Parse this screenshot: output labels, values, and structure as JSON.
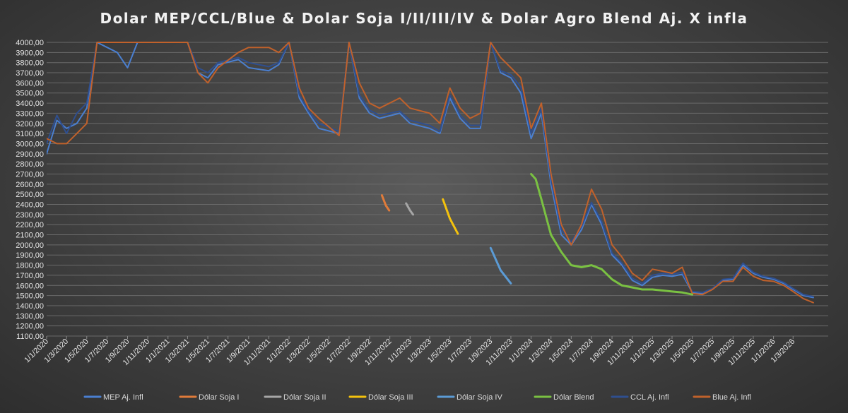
{
  "chart_data": {
    "type": "line",
    "title": "Dolar MEP/CCL/Blue & Dolar Soja I/II/III/IV & Dolar Agro Blend Aj. X infla",
    "xlabel": "",
    "ylabel": "",
    "ylim": [
      1100,
      4000
    ],
    "yticks": [
      "1100,00",
      "1200,00",
      "1300,00",
      "1400,00",
      "1500,00",
      "1600,00",
      "1700,00",
      "1800,00",
      "1900,00",
      "2000,00",
      "2100,00",
      "2200,00",
      "2300,00",
      "2400,00",
      "2500,00",
      "2600,00",
      "2700,00",
      "2800,00",
      "2900,00",
      "3000,00",
      "3100,00",
      "3200,00",
      "3300,00",
      "3400,00",
      "3500,00",
      "3600,00",
      "3700,00",
      "3800,00",
      "3900,00",
      "4000,00"
    ],
    "xticks": [
      "1/1/2020",
      "1/3/2020",
      "1/5/2020",
      "1/7/2020",
      "1/9/2020",
      "1/11/2020",
      "1/1/2021",
      "1/3/2021",
      "1/5/2021",
      "1/7/2021",
      "1/9/2021",
      "1/11/2021",
      "1/1/2022",
      "1/3/2022",
      "1/5/2022",
      "1/7/2022",
      "1/9/2022",
      "1/11/2022",
      "1/1/2023",
      "1/3/2023",
      "1/5/2023",
      "1/7/2023",
      "1/9/2023",
      "1/11/2023",
      "1/1/2024",
      "1/3/2024",
      "1/5/2024",
      "1/7/2024",
      "1/9/2024",
      "1/11/2024",
      "1/1/2025",
      "1/3/2025",
      "1/5/2025",
      "1/7/2025",
      "1/9/2025",
      "1/11/2025",
      "1/1/2026",
      "1/3/2026"
    ],
    "grid": true,
    "legend_position": "bottom",
    "series": [
      {
        "name": "MEP Aj. Infl",
        "color": "#4a7fd0",
        "width": 2,
        "points": [
          [
            "1/1/2020",
            2900
          ],
          [
            "1/2/2020",
            3230
          ],
          [
            "1/3/2020",
            3150
          ],
          [
            "1/4/2020",
            3200
          ],
          [
            "1/5/2020",
            3350
          ],
          [
            "1/6/2020",
            4000
          ],
          [
            "1/8/2020",
            3900
          ],
          [
            "1/9/2020",
            3750
          ],
          [
            "1/10/2020",
            4000
          ],
          [
            "1/3/2021",
            4000
          ],
          [
            "1/4/2021",
            3700
          ],
          [
            "1/5/2021",
            3650
          ],
          [
            "1/6/2021",
            3780
          ],
          [
            "1/8/2021",
            3830
          ],
          [
            "1/9/2021",
            3750
          ],
          [
            "1/11/2021",
            3720
          ],
          [
            "1/12/2021",
            3780
          ],
          [
            "1/1/2022",
            4000
          ],
          [
            "1/2/2022",
            3450
          ],
          [
            "1/3/2022",
            3300
          ],
          [
            "1/4/2022",
            3150
          ],
          [
            "1/6/2022",
            3100
          ],
          [
            "1/7/2022",
            4000
          ],
          [
            "1/8/2022",
            3450
          ],
          [
            "1/9/2022",
            3300
          ],
          [
            "1/10/2022",
            3250
          ],
          [
            "1/12/2022",
            3300
          ],
          [
            "1/1/2023",
            3200
          ],
          [
            "1/3/2023",
            3150
          ],
          [
            "1/4/2023",
            3100
          ],
          [
            "1/5/2023",
            3450
          ],
          [
            "1/6/2023",
            3250
          ],
          [
            "1/7/2023",
            3150
          ],
          [
            "1/8/2023",
            3150
          ],
          [
            "1/9/2023",
            4000
          ],
          [
            "1/10/2023",
            3700
          ],
          [
            "1/11/2023",
            3650
          ],
          [
            "1/12/2023",
            3500
          ],
          [
            "1/1/2024",
            3050
          ],
          [
            "1/2/2024",
            3300
          ],
          [
            "1/3/2024",
            2600
          ],
          [
            "1/4/2024",
            2100
          ],
          [
            "1/5/2024",
            2000
          ],
          [
            "1/6/2024",
            2150
          ],
          [
            "1/7/2024",
            2400
          ],
          [
            "1/8/2024",
            2200
          ],
          [
            "1/9/2024",
            1900
          ],
          [
            "1/10/2024",
            1800
          ],
          [
            "1/11/2024",
            1650
          ],
          [
            "1/12/2024",
            1600
          ],
          [
            "1/1/2025",
            1680
          ],
          [
            "1/2/2025",
            1700
          ],
          [
            "1/3/2025",
            1690
          ],
          [
            "1/4/2025",
            1710
          ],
          [
            "1/5/2025",
            1530
          ],
          [
            "1/6/2025",
            1520
          ],
          [
            "1/7/2025",
            1560
          ],
          [
            "1/8/2025",
            1650
          ],
          [
            "1/9/2025",
            1660
          ],
          [
            "1/10/2025",
            1800
          ],
          [
            "1/11/2025",
            1720
          ],
          [
            "1/12/2025",
            1680
          ],
          [
            "1/1/2026",
            1660
          ],
          [
            "1/2/2026",
            1620
          ],
          [
            "1/3/2026",
            1560
          ],
          [
            "1/4/2026",
            1500
          ],
          [
            "1/5/2026",
            1480
          ]
        ]
      },
      {
        "name": "Dólar Soja I",
        "color": "#e07b3a",
        "width": 3,
        "points": [
          [
            "8/10/2022",
            2490
          ],
          [
            "20/10/2022",
            2390
          ],
          [
            "30/10/2022",
            2340
          ]
        ]
      },
      {
        "name": "Dólar Soja II",
        "color": "#a6a6a6",
        "width": 3,
        "points": [
          [
            "20/12/2022",
            2410
          ],
          [
            "1/1/2023",
            2340
          ],
          [
            "10/1/2023",
            2300
          ]
        ]
      },
      {
        "name": "Dólar Soja III",
        "color": "#f4c20d",
        "width": 3,
        "points": [
          [
            "10/4/2023",
            2450
          ],
          [
            "1/5/2023",
            2260
          ],
          [
            "25/5/2023",
            2110
          ]
        ]
      },
      {
        "name": "Dólar Soja IV",
        "color": "#5b9bd5",
        "width": 3,
        "points": [
          [
            "1/9/2023",
            1970
          ],
          [
            "1/10/2023",
            1750
          ],
          [
            "1/11/2023",
            1620
          ]
        ]
      },
      {
        "name": "Dólar Blend",
        "color": "#7ac142",
        "width": 3,
        "points": [
          [
            "1/1/2024",
            2700
          ],
          [
            "15/1/2024",
            2650
          ],
          [
            "1/2/2024",
            2450
          ],
          [
            "1/3/2024",
            2100
          ],
          [
            "1/4/2024",
            1930
          ],
          [
            "1/5/2024",
            1800
          ],
          [
            "1/6/2024",
            1780
          ],
          [
            "1/7/2024",
            1800
          ],
          [
            "1/8/2024",
            1760
          ],
          [
            "1/9/2024",
            1660
          ],
          [
            "1/10/2024",
            1600
          ],
          [
            "1/11/2024",
            1580
          ],
          [
            "1/12/2024",
            1560
          ],
          [
            "1/1/2025",
            1560
          ],
          [
            "1/3/2025",
            1540
          ],
          [
            "1/4/2025",
            1530
          ],
          [
            "1/5/2025",
            1510
          ]
        ]
      },
      {
        "name": "CCL Aj. Infl",
        "color": "#2f4f8f",
        "width": 2,
        "points": [
          [
            "1/1/2020",
            3000
          ],
          [
            "1/2/2020",
            3280
          ],
          [
            "1/3/2020",
            3100
          ],
          [
            "1/4/2020",
            3300
          ],
          [
            "1/5/2020",
            3400
          ],
          [
            "1/6/2020",
            4000
          ],
          [
            "1/10/2020",
            4000
          ],
          [
            "1/3/2021",
            4000
          ],
          [
            "1/4/2021",
            3750
          ],
          [
            "1/5/2021",
            3700
          ],
          [
            "1/6/2021",
            3800
          ],
          [
            "1/8/2021",
            3850
          ],
          [
            "1/9/2021",
            3800
          ],
          [
            "1/11/2021",
            3760
          ],
          [
            "1/12/2021",
            3800
          ],
          [
            "1/1/2022",
            4000
          ],
          [
            "1/2/2022",
            3480
          ],
          [
            "1/3/2022",
            3320
          ],
          [
            "1/4/2022",
            3200
          ],
          [
            "1/6/2022",
            3120
          ],
          [
            "1/7/2022",
            4000
          ],
          [
            "1/8/2022",
            3480
          ],
          [
            "1/9/2022",
            3330
          ],
          [
            "1/10/2022",
            3280
          ],
          [
            "1/12/2022",
            3320
          ],
          [
            "1/1/2023",
            3230
          ],
          [
            "1/3/2023",
            3180
          ],
          [
            "1/4/2023",
            3120
          ],
          [
            "1/5/2023",
            3480
          ],
          [
            "1/6/2023",
            3280
          ],
          [
            "1/7/2023",
            3180
          ],
          [
            "1/8/2023",
            3180
          ],
          [
            "1/9/2023",
            4000
          ],
          [
            "1/10/2023",
            3720
          ],
          [
            "1/11/2023",
            3680
          ],
          [
            "1/12/2023",
            3560
          ],
          [
            "1/1/2024",
            3100
          ],
          [
            "1/2/2024",
            3350
          ],
          [
            "1/3/2024",
            2650
          ],
          [
            "1/4/2024",
            2150
          ],
          [
            "1/5/2024",
            2030
          ],
          [
            "1/6/2024",
            2180
          ],
          [
            "1/7/2024",
            2420
          ],
          [
            "1/8/2024",
            2230
          ],
          [
            "1/9/2024",
            1920
          ],
          [
            "1/10/2024",
            1820
          ],
          [
            "1/11/2024",
            1670
          ],
          [
            "1/12/2024",
            1620
          ],
          [
            "1/1/2025",
            1700
          ],
          [
            "1/2/2025",
            1720
          ],
          [
            "1/3/2025",
            1710
          ],
          [
            "1/4/2025",
            1730
          ],
          [
            "1/5/2025",
            1540
          ],
          [
            "1/6/2025",
            1530
          ],
          [
            "1/7/2025",
            1570
          ],
          [
            "1/8/2025",
            1660
          ],
          [
            "1/9/2025",
            1670
          ],
          [
            "1/10/2025",
            1820
          ],
          [
            "1/11/2025",
            1730
          ],
          [
            "1/12/2025",
            1690
          ],
          [
            "1/1/2026",
            1670
          ],
          [
            "1/2/2026",
            1630
          ],
          [
            "1/3/2026",
            1570
          ],
          [
            "1/4/2026",
            1510
          ],
          [
            "1/5/2026",
            1490
          ]
        ]
      },
      {
        "name": "Blue Aj. Infl",
        "color": "#c0612b",
        "width": 2,
        "points": [
          [
            "1/1/2020",
            3050
          ],
          [
            "1/2/2020",
            3000
          ],
          [
            "1/3/2020",
            3000
          ],
          [
            "1/4/2020",
            3100
          ],
          [
            "1/5/2020",
            3200
          ],
          [
            "1/6/2020",
            4000
          ],
          [
            "1/10/2020",
            4000
          ],
          [
            "1/3/2021",
            4000
          ],
          [
            "1/4/2021",
            3700
          ],
          [
            "1/5/2021",
            3600
          ],
          [
            "1/6/2021",
            3750
          ],
          [
            "1/8/2021",
            3900
          ],
          [
            "1/9/2021",
            3950
          ],
          [
            "1/11/2021",
            3950
          ],
          [
            "1/12/2021",
            3900
          ],
          [
            "1/1/2022",
            4000
          ],
          [
            "1/2/2022",
            3550
          ],
          [
            "1/3/2022",
            3350
          ],
          [
            "1/4/2022",
            3250
          ],
          [
            "1/6/2022",
            3080
          ],
          [
            "1/7/2022",
            4000
          ],
          [
            "1/8/2022",
            3600
          ],
          [
            "1/9/2022",
            3400
          ],
          [
            "1/10/2022",
            3350
          ],
          [
            "1/12/2022",
            3450
          ],
          [
            "1/1/2023",
            3350
          ],
          [
            "1/3/2023",
            3300
          ],
          [
            "1/4/2023",
            3200
          ],
          [
            "1/5/2023",
            3550
          ],
          [
            "1/6/2023",
            3350
          ],
          [
            "1/7/2023",
            3250
          ],
          [
            "1/8/2023",
            3300
          ],
          [
            "1/9/2023",
            4000
          ],
          [
            "1/10/2023",
            3850
          ],
          [
            "1/11/2023",
            3750
          ],
          [
            "1/12/2023",
            3650
          ],
          [
            "1/1/2024",
            3150
          ],
          [
            "1/2/2024",
            3400
          ],
          [
            "1/3/2024",
            2700
          ],
          [
            "1/4/2024",
            2200
          ],
          [
            "1/5/2024",
            2000
          ],
          [
            "1/6/2024",
            2200
          ],
          [
            "1/7/2024",
            2550
          ],
          [
            "1/8/2024",
            2350
          ],
          [
            "1/9/2024",
            2000
          ],
          [
            "1/10/2024",
            1880
          ],
          [
            "1/11/2024",
            1720
          ],
          [
            "1/12/2024",
            1650
          ],
          [
            "1/1/2025",
            1760
          ],
          [
            "1/2/2025",
            1740
          ],
          [
            "1/3/2025",
            1720
          ],
          [
            "1/4/2025",
            1780
          ],
          [
            "1/5/2025",
            1520
          ],
          [
            "1/6/2025",
            1510
          ],
          [
            "1/7/2025",
            1560
          ],
          [
            "1/8/2025",
            1640
          ],
          [
            "1/9/2025",
            1640
          ],
          [
            "1/10/2025",
            1780
          ],
          [
            "1/11/2025",
            1690
          ],
          [
            "1/12/2025",
            1650
          ],
          [
            "1/1/2026",
            1640
          ],
          [
            "1/2/2026",
            1600
          ],
          [
            "1/3/2026",
            1540
          ],
          [
            "1/4/2026",
            1470
          ],
          [
            "1/5/2026",
            1430
          ]
        ]
      }
    ]
  }
}
